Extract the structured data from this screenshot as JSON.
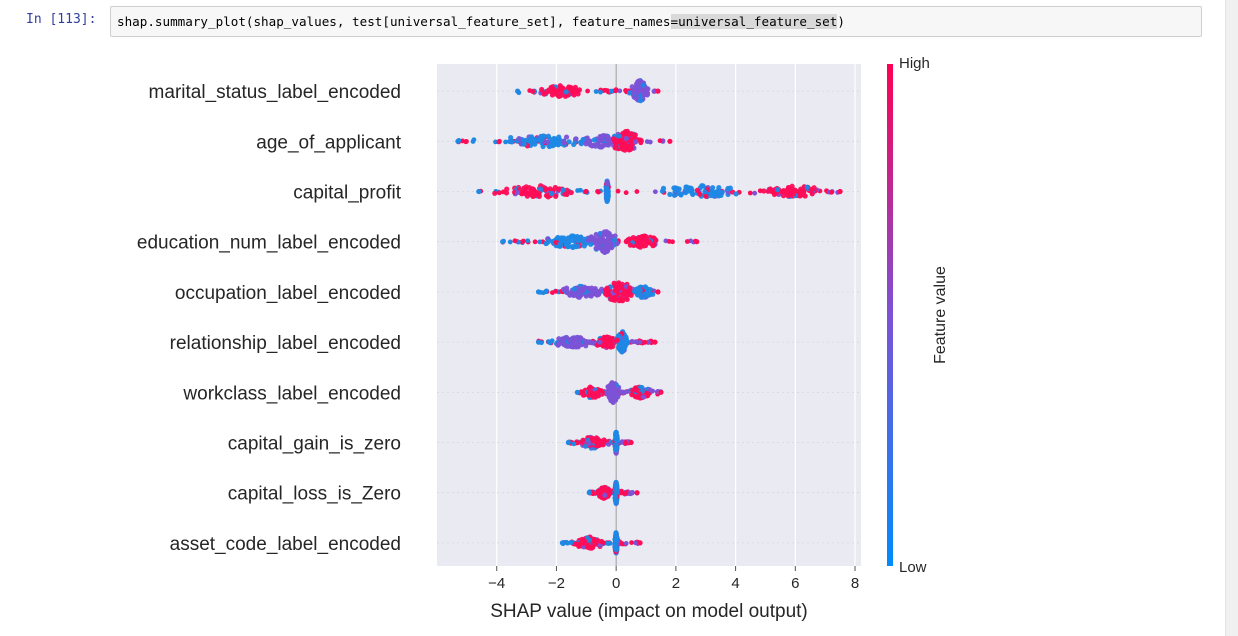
{
  "cell": {
    "prompt": "In [113]:",
    "code_before": "shap.summary_plot(shap_values, test[universal_feature_set], feature_names",
    "code_op": "=",
    "code_highlight": "universal_feature_set",
    "code_after": ")"
  },
  "colors": {
    "low": "#1e88e5",
    "high": "#ff0d57",
    "mid": "#7c52d6",
    "plot_bg": "#eaeaf2"
  },
  "chart_data": {
    "type": "scatter",
    "subtype": "shap-beeswarm",
    "xlabel": "SHAP value (impact on model output)",
    "xlim": [
      -6,
      8.2
    ],
    "xticks": [
      "−4",
      "−2",
      "0",
      "2",
      "4",
      "6",
      "8"
    ],
    "xtick_values": [
      -4,
      -2,
      0,
      2,
      4,
      6,
      8
    ],
    "grid": true,
    "colorbar": {
      "label": "Feature value",
      "high": "High",
      "low": "Low"
    },
    "features": [
      {
        "name": "marital_status_label_encoded",
        "min": -3.3,
        "max": 1.4,
        "clusters": [
          {
            "center": -1.8,
            "width": 0.9,
            "color": "high"
          },
          {
            "center": 0.8,
            "width": 0.35,
            "color": "mid",
            "tall": true
          }
        ]
      },
      {
        "name": "age_of_applicant",
        "min": -5.3,
        "max": 1.8,
        "clusters": [
          {
            "center": -2.5,
            "width": 2.0,
            "color": "low"
          },
          {
            "center": -0.5,
            "width": 1.2,
            "color": "mid"
          },
          {
            "center": 0.3,
            "width": 0.6,
            "color": "high",
            "tall": true
          }
        ]
      },
      {
        "name": "capital_profit",
        "min": -4.6,
        "max": 7.5,
        "clusters": [
          {
            "center": -0.3,
            "width": 0.05,
            "color": "low",
            "tall": true
          },
          {
            "center": -2.5,
            "width": 1.8,
            "color": "high"
          },
          {
            "center": 2.8,
            "width": 1.8,
            "color": "low"
          },
          {
            "center": 6.0,
            "width": 1.2,
            "color": "high"
          }
        ]
      },
      {
        "name": "education_num_label_encoded",
        "min": -3.8,
        "max": 2.7,
        "clusters": [
          {
            "center": -1.5,
            "width": 1.3,
            "color": "low"
          },
          {
            "center": -0.4,
            "width": 0.6,
            "color": "mid",
            "tall": true
          },
          {
            "center": 0.9,
            "width": 0.8,
            "color": "high"
          }
        ]
      },
      {
        "name": "occupation_label_encoded",
        "min": -2.6,
        "max": 1.4,
        "clusters": [
          {
            "center": -1.2,
            "width": 0.9,
            "color": "mid"
          },
          {
            "center": 0.1,
            "width": 0.6,
            "color": "high",
            "tall": true
          },
          {
            "center": 0.9,
            "width": 0.4,
            "color": "low"
          }
        ]
      },
      {
        "name": "relationship_label_encoded",
        "min": -2.6,
        "max": 1.3,
        "clusters": [
          {
            "center": -1.4,
            "width": 0.9,
            "color": "mid"
          },
          {
            "center": -0.3,
            "width": 0.5,
            "color": "high"
          },
          {
            "center": 0.2,
            "width": 0.2,
            "color": "low",
            "tall": true
          }
        ]
      },
      {
        "name": "workclass_label_encoded",
        "min": -1.3,
        "max": 1.5,
        "clusters": [
          {
            "center": -0.1,
            "width": 0.25,
            "color": "mid",
            "tall": true
          },
          {
            "center": -0.8,
            "width": 0.4,
            "color": "high"
          },
          {
            "center": 0.8,
            "width": 0.4,
            "color": "high"
          }
        ]
      },
      {
        "name": "capital_gain_is_zero",
        "min": -1.6,
        "max": 0.5,
        "clusters": [
          {
            "center": -0.8,
            "width": 0.55,
            "color": "high"
          },
          {
            "center": 0.0,
            "width": 0.05,
            "color": "low",
            "tall": true
          }
        ]
      },
      {
        "name": "capital_loss_is_Zero",
        "min": -0.9,
        "max": 0.7,
        "clusters": [
          {
            "center": -0.4,
            "width": 0.35,
            "color": "high"
          },
          {
            "center": 0.0,
            "width": 0.05,
            "color": "low",
            "tall": true
          }
        ]
      },
      {
        "name": "asset_code_label_encoded",
        "min": -1.8,
        "max": 0.8,
        "clusters": [
          {
            "center": -0.9,
            "width": 0.6,
            "color": "high"
          },
          {
            "center": 0.0,
            "width": 0.05,
            "color": "low",
            "tall": true
          }
        ]
      }
    ]
  }
}
